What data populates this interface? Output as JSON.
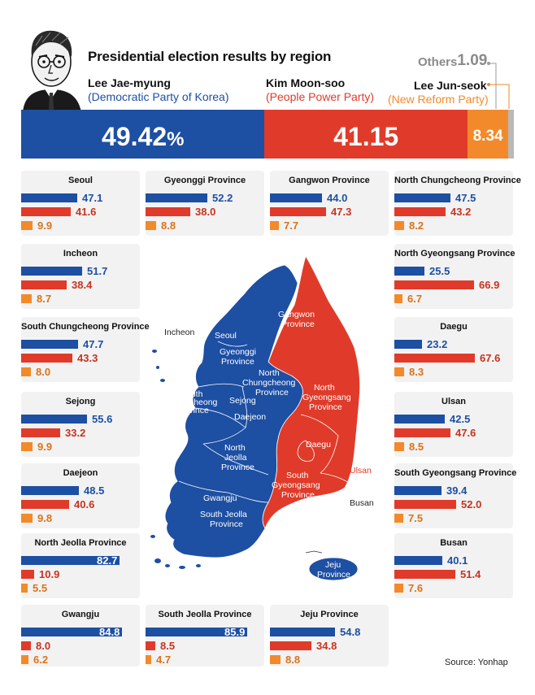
{
  "header": {
    "title": "Presidential election results by region",
    "source": "Source:  Yonhap"
  },
  "colors": {
    "lee": "#1d4fa3",
    "kim": "#e03b2a",
    "lee_jun": "#f28a2b",
    "others": "#b9b9b9",
    "card_bg": "#f2f2f2"
  },
  "candidates": {
    "lee": {
      "name": "Lee Jae-myung",
      "party": "(Democratic Party of Korea)"
    },
    "kim": {
      "name": "Kim Moon-soo",
      "party": "(People Power Party)"
    },
    "lee_jun": {
      "name": "Lee Jun-seok",
      "party": "(New Reform Party)"
    },
    "others": {
      "label": "Others",
      "value": "1.09"
    }
  },
  "national": {
    "lee_label": "49.42",
    "pct_sign": "%",
    "kim_label": "41.15",
    "jun_label": "8.34"
  },
  "map": {
    "labels": {
      "incheon": "Incheon",
      "seoul": "Seoul",
      "gyeonggi_1": "Gyeonggi",
      "gyeonggi_2": "Province",
      "gangwon_1": "Gangwon",
      "gangwon_2": "Province",
      "nchung_1": "North",
      "nchung_2": "Chungcheong",
      "nchung_3": "Province",
      "schung_1": "South",
      "schung_2": "Chungcheong",
      "schung_3": "Province",
      "sejong": "Sejong",
      "daejeon": "Daejeon",
      "ngyeong_1": "North",
      "ngyeong_2": "Gyeongsang",
      "ngyeong_3": "Province",
      "njeolla_1": "North",
      "njeolla_2": "Jeolla",
      "njeolla_3": "Province",
      "daegu": "Daegu",
      "sgyeong_1": "South",
      "sgyeong_2": "Gyeongsang",
      "sgyeong_3": "Province",
      "ulsan": "Ulsan",
      "gwangju": "Gwangju",
      "sjeolla_1": "South Jeolla",
      "sjeolla_2": "Province",
      "busan": "Busan",
      "jeju_1": "Jeju",
      "jeju_2": "Province"
    }
  },
  "chart_data": {
    "type": "bar",
    "title": "Presidential election results by region",
    "national": {
      "series": [
        {
          "name": "Lee Jae-myung (Democratic Party of Korea)",
          "value": 49.42
        },
        {
          "name": "Kim Moon-soo (People Power Party)",
          "value": 41.15
        },
        {
          "name": "Lee Jun-seok (New Reform Party)",
          "value": 8.34
        },
        {
          "name": "Others",
          "value": 1.09
        }
      ]
    },
    "series_names": [
      "Lee Jae-myung",
      "Kim Moon-soo",
      "Lee Jun-seok"
    ],
    "xlim": [
      0,
      100
    ],
    "regions": [
      {
        "name": "Seoul",
        "values": [
          47.1,
          41.6,
          9.9
        ]
      },
      {
        "name": "Gyeonggi Province",
        "values": [
          52.2,
          38.0,
          8.8
        ]
      },
      {
        "name": "Gangwon Province",
        "values": [
          44.0,
          47.3,
          7.7
        ]
      },
      {
        "name": "North Chungcheong Province",
        "values": [
          47.5,
          43.2,
          8.2
        ]
      },
      {
        "name": "Incheon",
        "values": [
          51.7,
          38.4,
          8.7
        ]
      },
      {
        "name": "North Gyeongsang Province",
        "values": [
          25.5,
          66.9,
          6.7
        ]
      },
      {
        "name": "South Chungcheong Province",
        "values": [
          47.7,
          43.3,
          8.0
        ]
      },
      {
        "name": "Daegu",
        "values": [
          23.2,
          67.6,
          8.3
        ]
      },
      {
        "name": "Sejong",
        "values": [
          55.6,
          33.2,
          9.9
        ]
      },
      {
        "name": "Ulsan",
        "values": [
          42.5,
          47.6,
          8.5
        ]
      },
      {
        "name": "Daejeon",
        "values": [
          48.5,
          40.6,
          9.8
        ]
      },
      {
        "name": "South Gyeongsang Province",
        "values": [
          39.4,
          52.0,
          7.5
        ]
      },
      {
        "name": "North Jeolla Province",
        "values": [
          82.7,
          10.9,
          5.5
        ]
      },
      {
        "name": "Busan",
        "values": [
          40.1,
          51.4,
          7.6
        ]
      },
      {
        "name": "Gwangju",
        "values": [
          84.8,
          8.0,
          6.2
        ]
      },
      {
        "name": "South Jeolla Province",
        "values": [
          85.9,
          8.5,
          4.7
        ]
      },
      {
        "name": "Jeju Province",
        "values": [
          54.8,
          34.8,
          8.8
        ]
      }
    ]
  }
}
